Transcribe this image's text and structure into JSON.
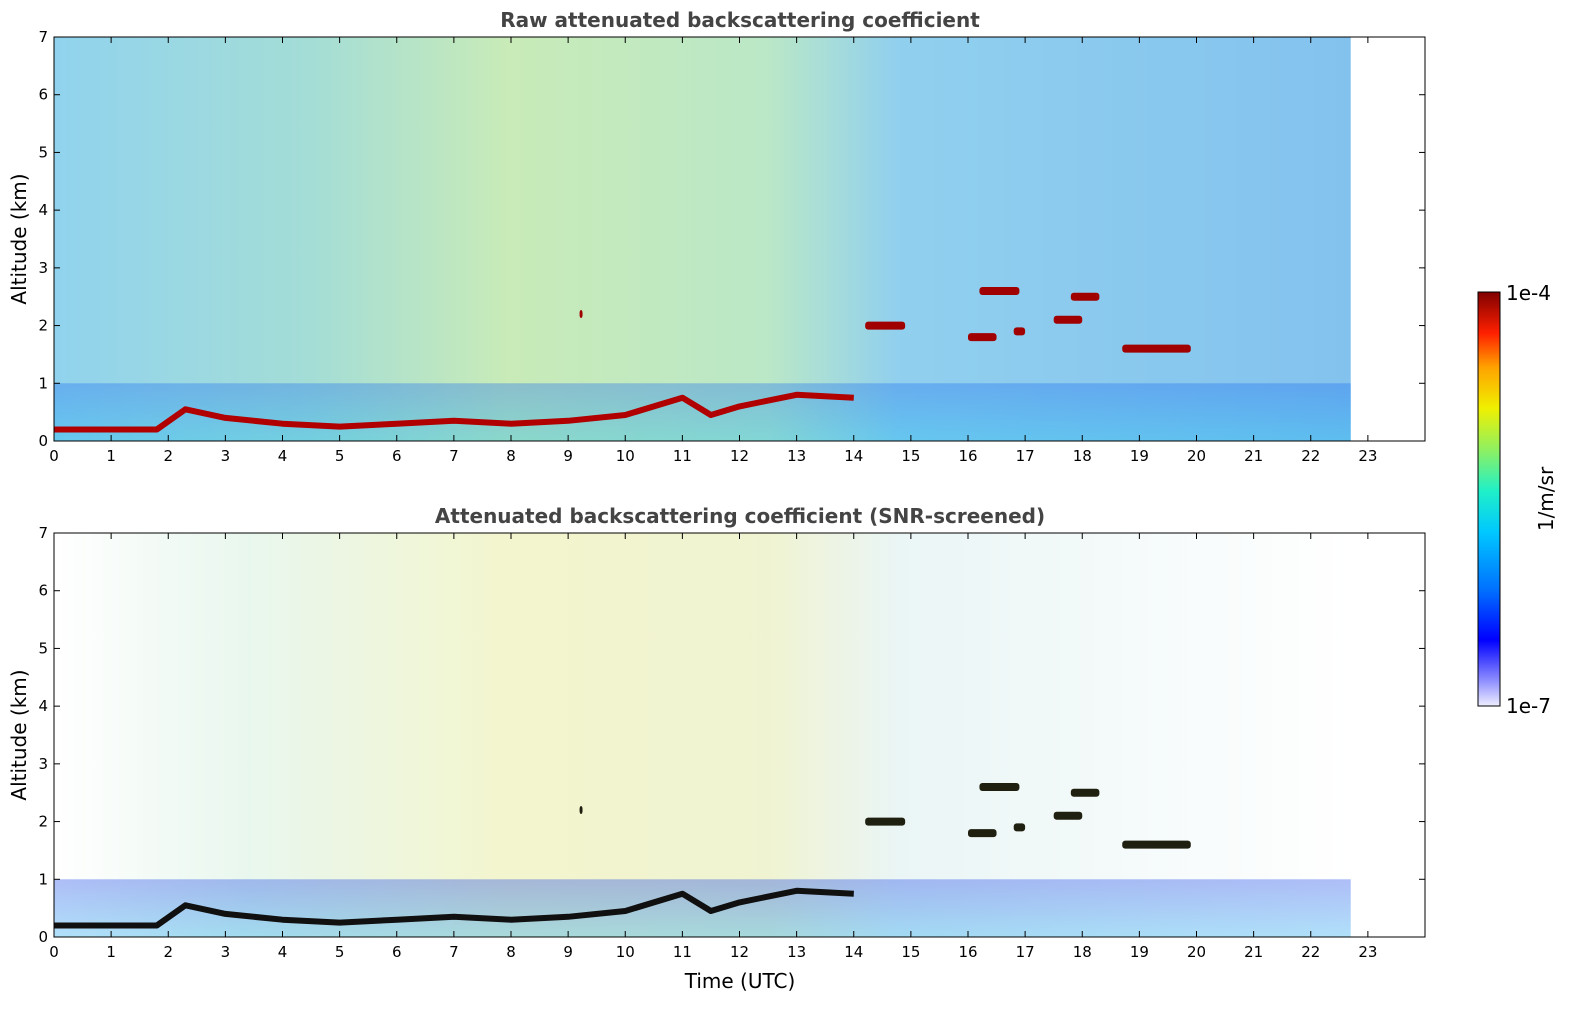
{
  "chart_data": [
    {
      "type": "heatmap",
      "title": "Raw attenuated backscattering coefficient",
      "xlabel": "",
      "ylabel": "Altitude (km)",
      "xlim": [
        0,
        24
      ],
      "ylim": [
        0,
        7
      ],
      "x_ticks": [
        "0",
        "1",
        "2",
        "3",
        "4",
        "5",
        "6",
        "7",
        "8",
        "9",
        "10",
        "11",
        "12",
        "13",
        "14",
        "15",
        "16",
        "17",
        "18",
        "19",
        "20",
        "21",
        "22",
        "23"
      ],
      "y_ticks": [
        "0",
        "1",
        "2",
        "3",
        "4",
        "5",
        "6",
        "7"
      ],
      "data_end_hour": 22.7,
      "boundary_layer_top_km": [
        [
          0,
          0.2
        ],
        [
          1.8,
          0.2
        ],
        [
          2.3,
          0.55
        ],
        [
          3,
          0.4
        ],
        [
          4,
          0.3
        ],
        [
          5,
          0.25
        ],
        [
          6,
          0.3
        ],
        [
          7,
          0.35
        ],
        [
          8,
          0.3
        ],
        [
          9,
          0.35
        ],
        [
          10,
          0.45
        ],
        [
          11,
          0.75
        ],
        [
          11.5,
          0.45
        ],
        [
          12,
          0.6
        ],
        [
          13,
          0.8
        ],
        [
          14,
          0.75
        ]
      ],
      "cloud_layers": [
        {
          "t_start": 16.2,
          "t_end": 16.9,
          "alt_km": 2.6
        },
        {
          "t_start": 17.8,
          "t_end": 18.3,
          "alt_km": 2.5
        },
        {
          "t_start": 14.2,
          "t_end": 14.9,
          "alt_km": 2.0
        },
        {
          "t_start": 16.0,
          "t_end": 16.5,
          "alt_km": 1.8
        },
        {
          "t_start": 16.8,
          "t_end": 17.0,
          "alt_km": 1.9
        },
        {
          "t_start": 17.5,
          "t_end": 18.0,
          "alt_km": 2.1
        },
        {
          "t_start": 18.7,
          "t_end": 19.9,
          "alt_km": 1.6
        },
        {
          "t_start": 9.2,
          "t_end": 9.25,
          "alt_km": 2.2
        }
      ]
    },
    {
      "type": "heatmap",
      "title": "Attenuated backscattering coefficient (SNR-screened)",
      "xlabel": "Time (UTC)",
      "ylabel": "Altitude (km)",
      "xlim": [
        0,
        24
      ],
      "ylim": [
        0,
        7
      ],
      "x_ticks": [
        "0",
        "1",
        "2",
        "3",
        "4",
        "5",
        "6",
        "7",
        "8",
        "9",
        "10",
        "11",
        "12",
        "13",
        "14",
        "15",
        "16",
        "17",
        "18",
        "19",
        "20",
        "21",
        "22",
        "23"
      ],
      "y_ticks": [
        "0",
        "1",
        "2",
        "3",
        "4",
        "5",
        "6",
        "7"
      ],
      "data_end_hour": 22.7
    }
  ],
  "colorbar": {
    "label": "1/m/sr",
    "max_label": "1e-4",
    "min_label": "1e-7",
    "colors": [
      "#e8e8ff",
      "#8080ff",
      "#0000ff",
      "#0060ff",
      "#00a0ff",
      "#00d8f0",
      "#40f0b0",
      "#a0f060",
      "#f0f000",
      "#ffa000",
      "#ff3000",
      "#c00000",
      "#800000"
    ]
  }
}
